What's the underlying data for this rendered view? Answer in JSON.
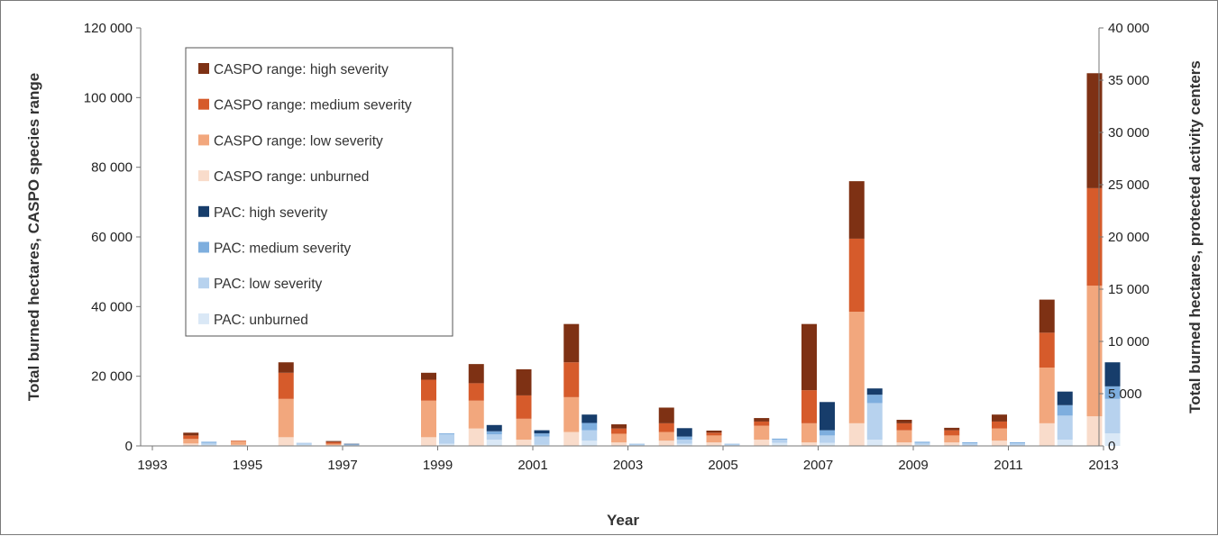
{
  "chart_data": {
    "type": "bar",
    "stacked": true,
    "title": "",
    "xlabel": "Year",
    "ylabel_left": "Total burned hectares, CASPO species range",
    "ylabel_right": "Total burned hectares, protected activity centers",
    "ylim_left": [
      0,
      120000
    ],
    "ylim_right": [
      0,
      40000
    ],
    "yticks_left": [
      "0",
      "20 000",
      "40 000",
      "60 000",
      "80 000",
      "100 000",
      "120 000"
    ],
    "yticks_right": [
      "0",
      "5 000",
      "10 000",
      "15 000",
      "20 000",
      "25 000",
      "30 000",
      "35 000",
      "40 000"
    ],
    "xticks": [
      "1993",
      "1995",
      "1997",
      "1999",
      "2001",
      "2003",
      "2005",
      "2007",
      "2009",
      "2011",
      "2013"
    ],
    "grid": false,
    "legend_position": "top-left",
    "categories": [
      "1993",
      "1994",
      "1995",
      "1996",
      "1997",
      "1998",
      "1999",
      "2000",
      "2001",
      "2002",
      "2003",
      "2004",
      "2005",
      "2006",
      "2007",
      "2008",
      "2009",
      "2010",
      "2011",
      "2012",
      "2013"
    ],
    "groups": [
      {
        "name": "CASPO range",
        "axis": "left",
        "series": [
          {
            "name": "CASPO range: unburned",
            "color": "#f9dccb",
            "values": [
              0,
              700,
              300,
              2500,
              200,
              0,
              2500,
              5000,
              1800,
              4000,
              1000,
              1500,
              1000,
              1800,
              1000,
              6500,
              1000,
              1000,
              1500,
              6500,
              8500
            ]
          },
          {
            "name": "CASPO range: low severity",
            "color": "#f2a77d",
            "values": [
              0,
              1300,
              1000,
              11000,
              400,
              0,
              10500,
              8000,
              6000,
              10000,
              2500,
              2500,
              2000,
              4000,
              5500,
              32000,
              3500,
              2000,
              3500,
              16000,
              37500
            ]
          },
          {
            "name": "CASPO range: medium severity",
            "color": "#d65b2b",
            "values": [
              0,
              1000,
              200,
              7500,
              500,
              0,
              6000,
              5000,
              6700,
              10000,
              1500,
              2500,
              800,
              1200,
              9500,
              21000,
              2000,
              1500,
              2000,
              10000,
              28000
            ]
          },
          {
            "name": "CASPO range: high severity",
            "color": "#7e3114",
            "values": [
              0,
              800,
              0,
              3000,
              300,
              0,
              2000,
              5500,
              7500,
              11000,
              1200,
              4500,
              600,
              1000,
              19000,
              16500,
              1000,
              700,
              2000,
              9500,
              33000
            ]
          }
        ]
      },
      {
        "name": "PAC",
        "axis": "right",
        "series": [
          {
            "name": "PAC: unburned",
            "color": "#dae8f6",
            "values": [
              0,
              100,
              0,
              100,
              0,
              0,
              200,
              600,
              100,
              500,
              50,
              200,
              50,
              300,
              300,
              600,
              100,
              50,
              50,
              600,
              1200
            ]
          },
          {
            "name": "PAC: low severity",
            "color": "#b7d2ee",
            "values": [
              0,
              200,
              0,
              200,
              100,
              0,
              900,
              500,
              800,
              1000,
              100,
              400,
              100,
              300,
              700,
              3500,
              200,
              200,
              200,
              2300,
              3300
            ]
          },
          {
            "name": "PAC: medium severity",
            "color": "#7eaede",
            "values": [
              0,
              100,
              0,
              0,
              50,
              0,
              100,
              300,
              300,
              700,
              50,
              300,
              50,
              100,
              500,
              800,
              100,
              100,
              100,
              1000,
              1200
            ]
          },
          {
            "name": "PAC: high severity",
            "color": "#173d6b",
            "values": [
              0,
              0,
              0,
              0,
              50,
              0,
              0,
              600,
              300,
              800,
              0,
              800,
              0,
              0,
              2700,
              600,
              0,
              0,
              0,
              1300,
              2300
            ]
          }
        ]
      }
    ]
  }
}
